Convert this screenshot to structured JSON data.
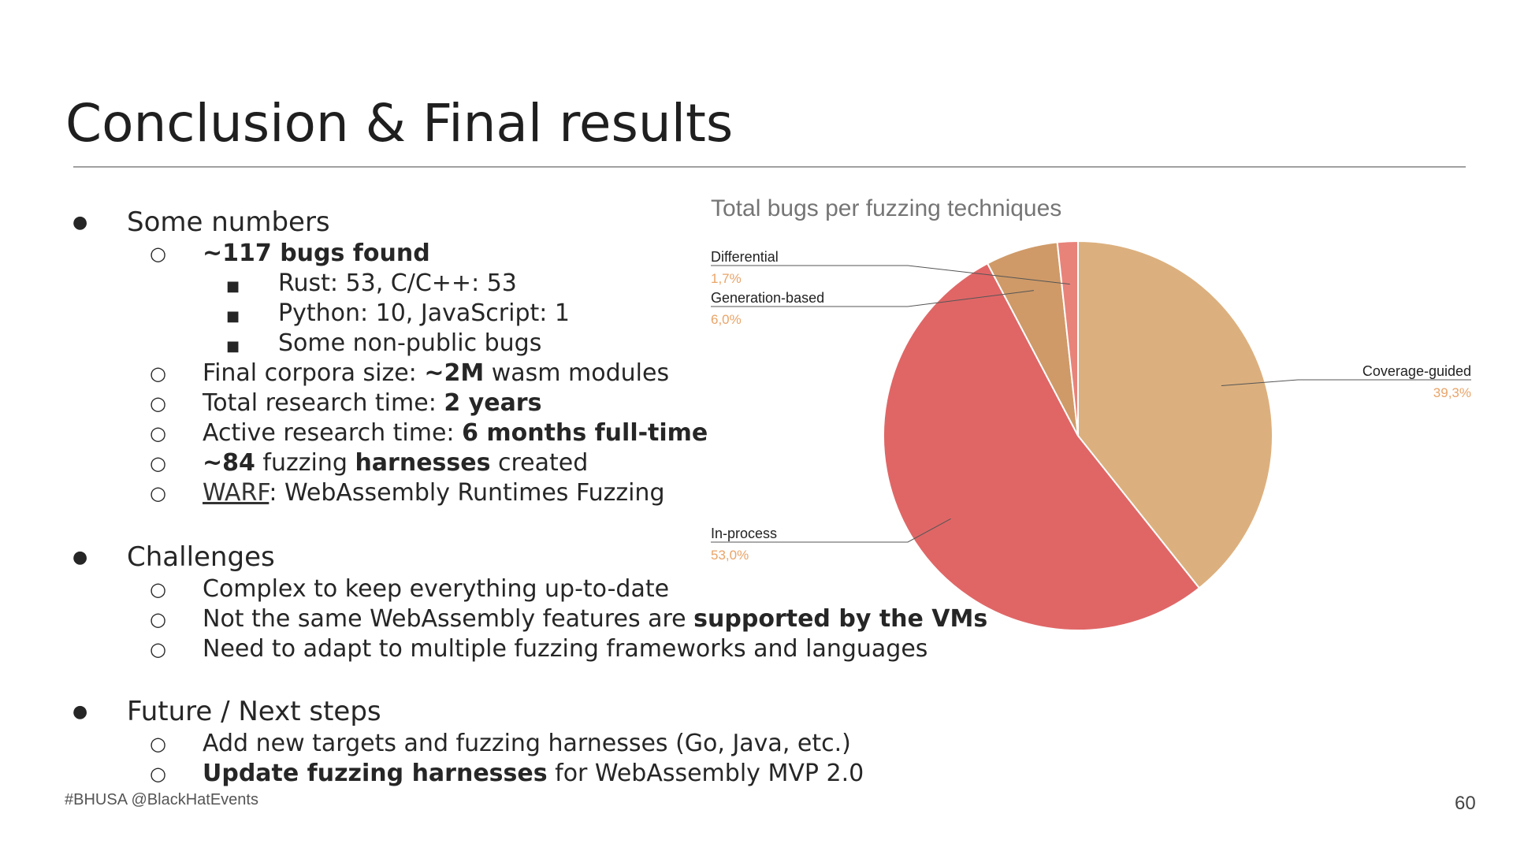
{
  "slide": {
    "title": "Conclusion & Final results",
    "footer": "#BHUSA @BlackHatEvents",
    "page_number": "60"
  },
  "sections": {
    "numbers": {
      "heading": "Some numbers",
      "bugs": {
        "bold": "~117 bugs found"
      },
      "rust_cpp": "Rust: 53, C/C++: 53",
      "python_js": "Python: 10, JavaScript: 1",
      "nonpublic": "Some non-public bugs",
      "corpora": {
        "pre": "Final corpora size: ",
        "bold": "~2M",
        "post": " wasm modules"
      },
      "total_time": {
        "pre": "Total research time: ",
        "bold": "2 years"
      },
      "active_time": {
        "pre": "Active research time: ",
        "bold": "6 months full-time"
      },
      "harnesses": {
        "bold1": "~84",
        "mid": " fuzzing ",
        "bold2": "harnesses",
        "post": " created"
      },
      "warf": {
        "link": "WARF",
        "post": ": WebAssembly Runtimes Fuzzing"
      }
    },
    "challenges": {
      "heading": "Challenges",
      "item1": "Complex to keep everything up-to-date",
      "item2": {
        "pre": "Not the same WebAssembly features are ",
        "bold": "supported by the VMs"
      },
      "item3": "Need to adapt to multiple fuzzing frameworks and languages"
    },
    "future": {
      "heading": "Future / Next steps",
      "item1": "Add new targets and fuzzing harnesses (Go, Java, etc.)",
      "item2": {
        "bold": "Update fuzzing harnesses",
        "post": " for WebAssembly MVP 2.0"
      }
    }
  },
  "chart_data": {
    "type": "pie",
    "title": "Total bugs per fuzzing techniques",
    "start_angle_deg": 0,
    "direction": "clockwise",
    "slices": [
      {
        "label": "Coverage-guided",
        "value": 39.3,
        "display": "39,3%",
        "color": "#dcb07e"
      },
      {
        "label": "In-process",
        "value": 53.0,
        "display": "53,0%",
        "color": "#e06666"
      },
      {
        "label": "Generation-based",
        "value": 6.0,
        "display": "6,0%",
        "color": "#cf9a68"
      },
      {
        "label": "Differential",
        "value": 1.7,
        "display": "1,7%",
        "color": "#e8837a"
      }
    ],
    "label_color": "#222222",
    "percent_color": "#e9a468"
  },
  "colors": {
    "title": "#1f1f1f",
    "text": "#262626",
    "rule": "#8a8a8a"
  }
}
